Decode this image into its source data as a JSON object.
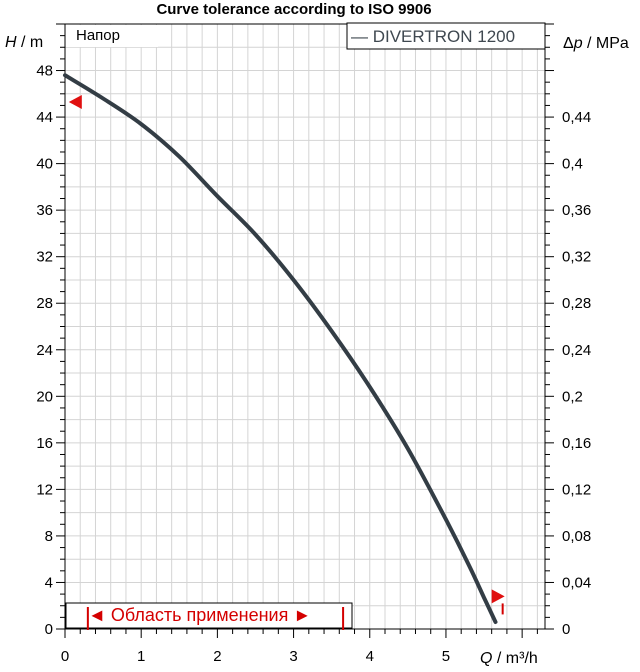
{
  "chart_data": {
    "type": "line",
    "title": "Curve tolerance according to ISO 9906",
    "xlabel": {
      "var": "Q",
      "unit": " / m³/h"
    },
    "ylabel": {
      "var": "H",
      "unit": " / m"
    },
    "y2label": {
      "prefix": "Δ",
      "var": "p",
      "unit": " / MPa"
    },
    "series_label": "Напор",
    "legend_label": "— DIVERTRON 1200",
    "xlim": [
      0,
      6.3
    ],
    "ylim": [
      0,
      52
    ],
    "y2lim": [
      0,
      0.52
    ],
    "x_ticks": [
      "0",
      "1",
      "2",
      "3",
      "4",
      "5"
    ],
    "y_ticks": [
      "0",
      "4",
      "8",
      "12",
      "16",
      "20",
      "24",
      "28",
      "32",
      "36",
      "40",
      "44",
      "48"
    ],
    "y2_ticks": [
      "0",
      "0,04",
      "0,08",
      "0,12",
      "0,16",
      "0,2",
      "0,24",
      "0,28",
      "0,32",
      "0,36",
      "0,4",
      "0,44"
    ],
    "series": [
      {
        "name": "DIVERTRON 1200",
        "color": "#333d45",
        "x": [
          0,
          0.5,
          1,
          1.5,
          2,
          2.5,
          3,
          3.5,
          4,
          4.5,
          5,
          5.3,
          5.5,
          5.65
        ],
        "y": [
          47.6,
          45.6,
          43.4,
          40.6,
          37.2,
          33.9,
          30.0,
          25.6,
          20.8,
          15.5,
          9.4,
          5.5,
          2.7,
          0.6
        ]
      }
    ],
    "tolerance_markers": [
      {
        "x": 0.05,
        "y": 45.3,
        "direction": "left"
      },
      {
        "x": 5.6,
        "y": 2.8,
        "direction": "right"
      }
    ],
    "application_range": {
      "label": "◄ Область применения ►",
      "x_start": 0.3,
      "x_end": 3.65
    },
    "grid": true,
    "colors": {
      "curve": "#333d45",
      "marker": "#e01010",
      "range": "#d40000",
      "grid": "#d4d4d4"
    }
  }
}
